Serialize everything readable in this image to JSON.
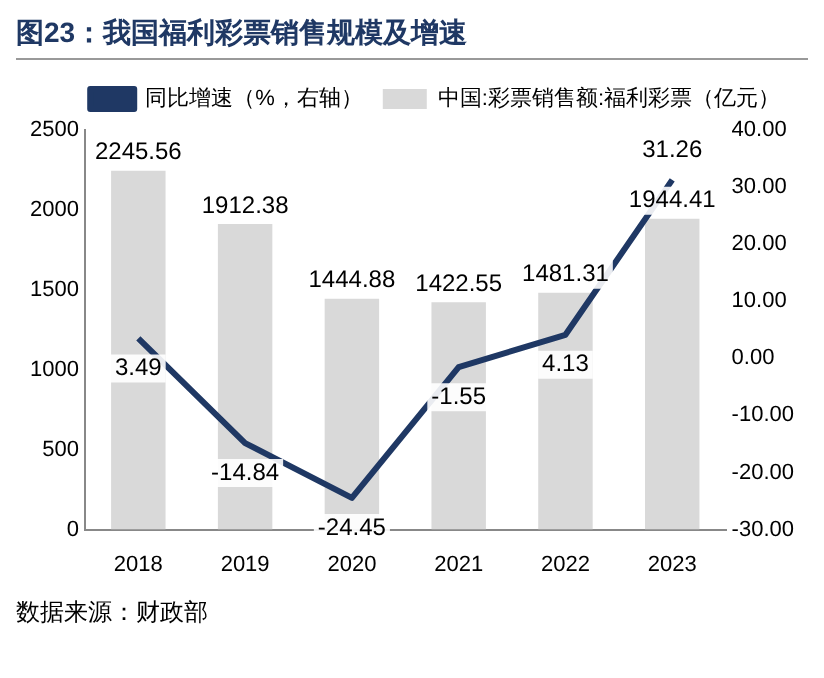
{
  "chart_data": {
    "type": "bar",
    "title": "图23：我国福利彩票销售规模及增速",
    "categories": [
      "2018",
      "2019",
      "2020",
      "2021",
      "2022",
      "2023"
    ],
    "series": [
      {
        "name": "中国:彩票销售额:福利彩票（亿元）",
        "color": "#d9d9d9",
        "values": [
          2245.56,
          1912.38,
          1444.88,
          1422.55,
          1481.31,
          1944.41
        ]
      },
      {
        "name": "同比增速（%，右轴）",
        "type": "line",
        "axis": "y2",
        "color": "#1f3864",
        "values": [
          3.49,
          -14.84,
          -24.45,
          -1.55,
          4.13,
          31.26
        ]
      }
    ],
    "ylim": [
      0,
      2500
    ],
    "yticks": [
      0,
      500,
      1000,
      1500,
      2000,
      2500
    ],
    "y2lim": [
      -30,
      40
    ],
    "y2ticks": [
      {
        "value": 40,
        "label": "40.00"
      },
      {
        "value": 30,
        "label": "30.00"
      },
      {
        "value": 20,
        "label": "20.00"
      },
      {
        "value": 10,
        "label": "10.00"
      },
      {
        "value": 0,
        "label": "0.00"
      },
      {
        "value": -10,
        "label": "-10.00"
      },
      {
        "value": -20,
        "label": "-20.00"
      },
      {
        "value": -30,
        "label": "-30.00"
      }
    ],
    "data_labels": true,
    "grid": false,
    "legend": "top right",
    "marker": "none",
    "line_style": "solid",
    "annotations": [
      "数据来源：财政部"
    ]
  }
}
